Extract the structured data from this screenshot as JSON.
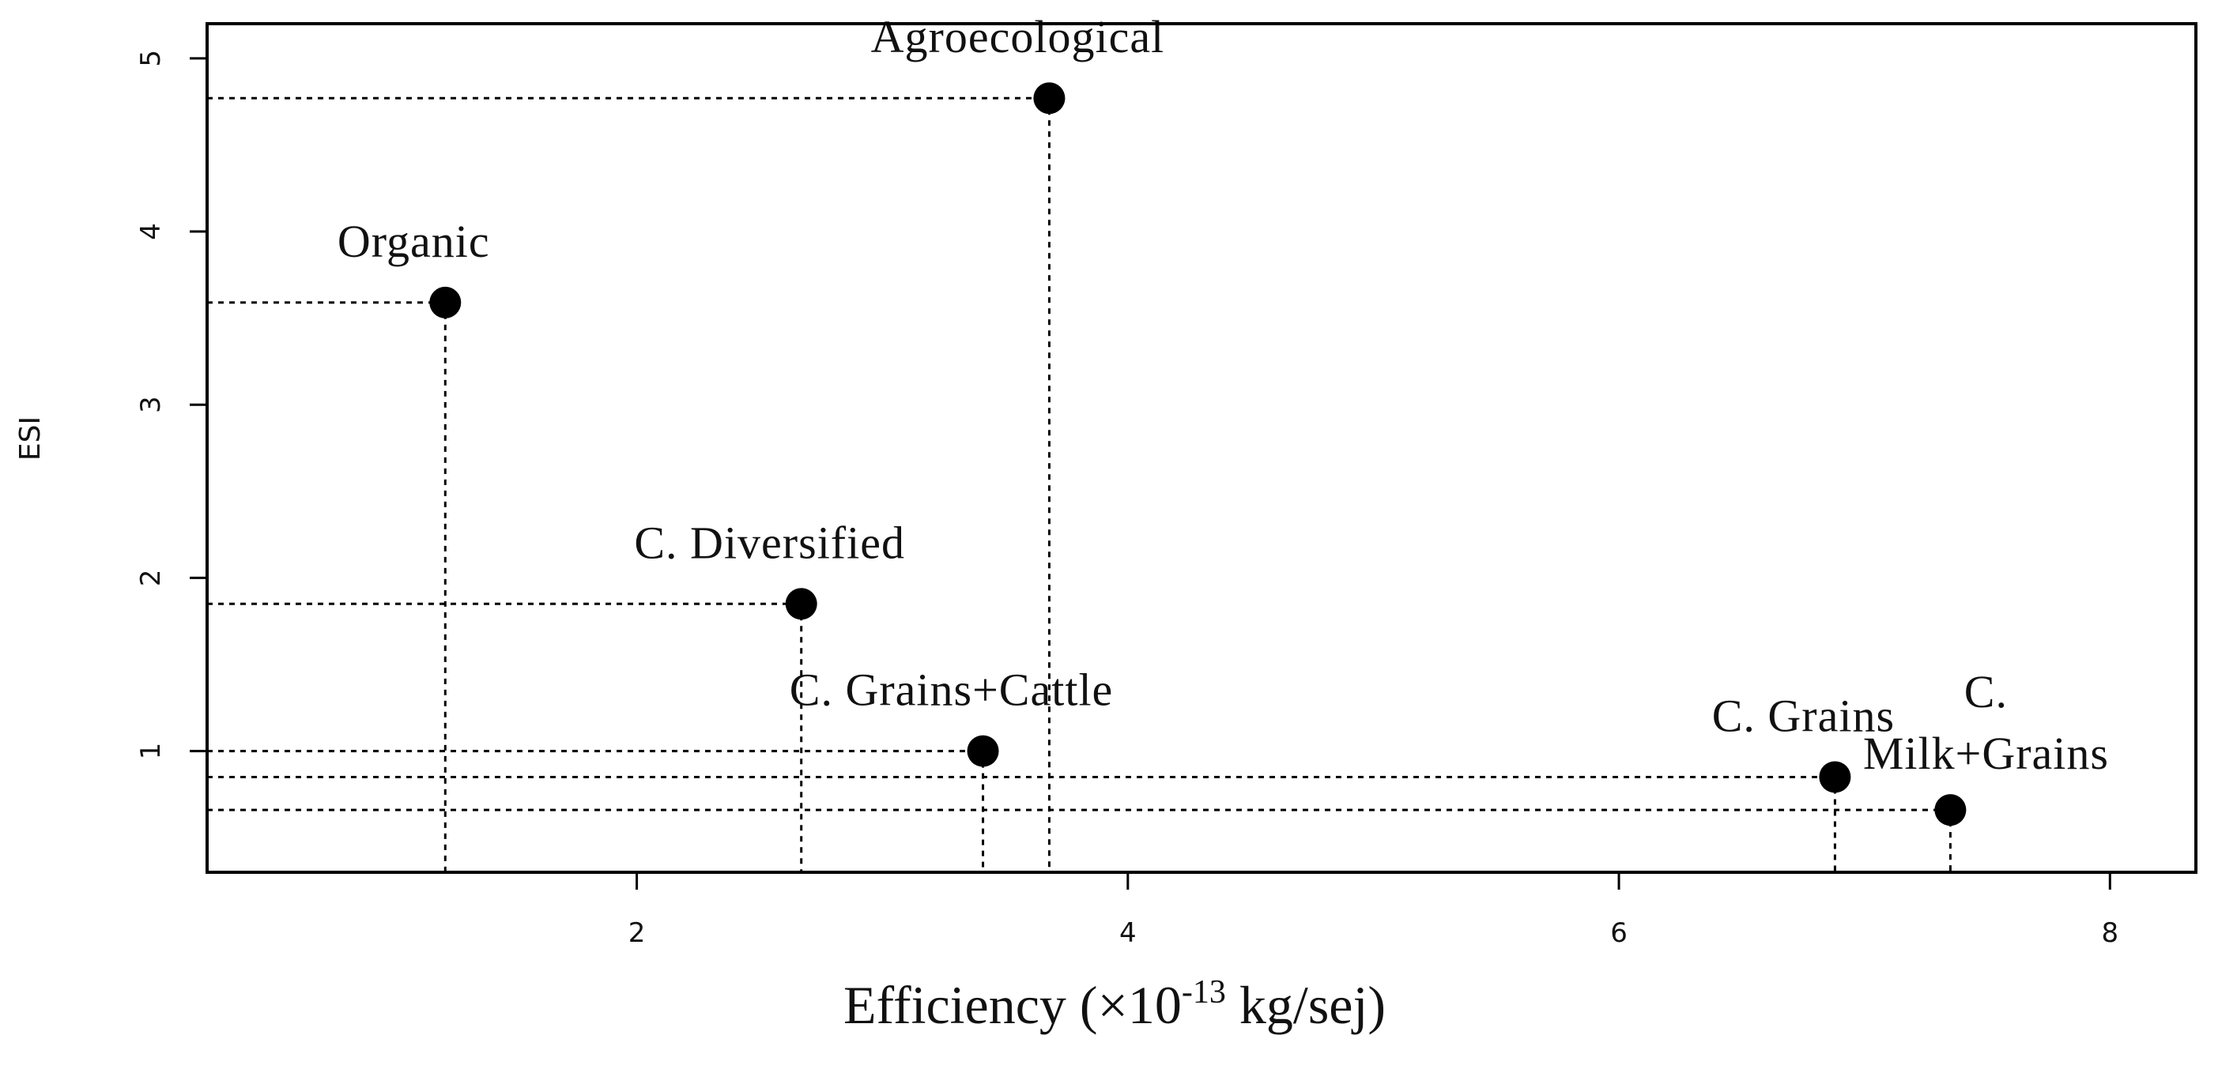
{
  "chart_data": {
    "type": "scatter",
    "title": "",
    "xlabel": "Efficiency (×10⁻¹³ kg/sej)",
    "xlabel_parts": {
      "pre": "Efficiency (",
      "mult": "×",
      "base": "10",
      "exp": "-13",
      "post": " kg/sej)"
    },
    "ylabel": "ESI",
    "xlim": [
      0.25,
      8.35
    ],
    "ylim": [
      0.3,
      5.2
    ],
    "x_ticks": [
      2,
      4,
      6,
      8
    ],
    "y_ticks": [
      1,
      2,
      3,
      4,
      5
    ],
    "grid": false,
    "drop_lines": "dotted",
    "points": [
      {
        "label": "Agroecological",
        "x": 3.68,
        "y": 4.77
      },
      {
        "label": "Organic",
        "x": 1.22,
        "y": 3.59
      },
      {
        "label": "C. Diversified",
        "x": 2.67,
        "y": 1.85
      },
      {
        "label": "C. Grains+Cattle",
        "x": 3.41,
        "y": 1.0
      },
      {
        "label": "C. Grains",
        "x": 6.88,
        "y": 0.85
      },
      {
        "label": "C. Milk+Grains",
        "x": 7.35,
        "y": 0.66,
        "label_lines": [
          "C.",
          "Milk+Grains"
        ]
      }
    ]
  }
}
